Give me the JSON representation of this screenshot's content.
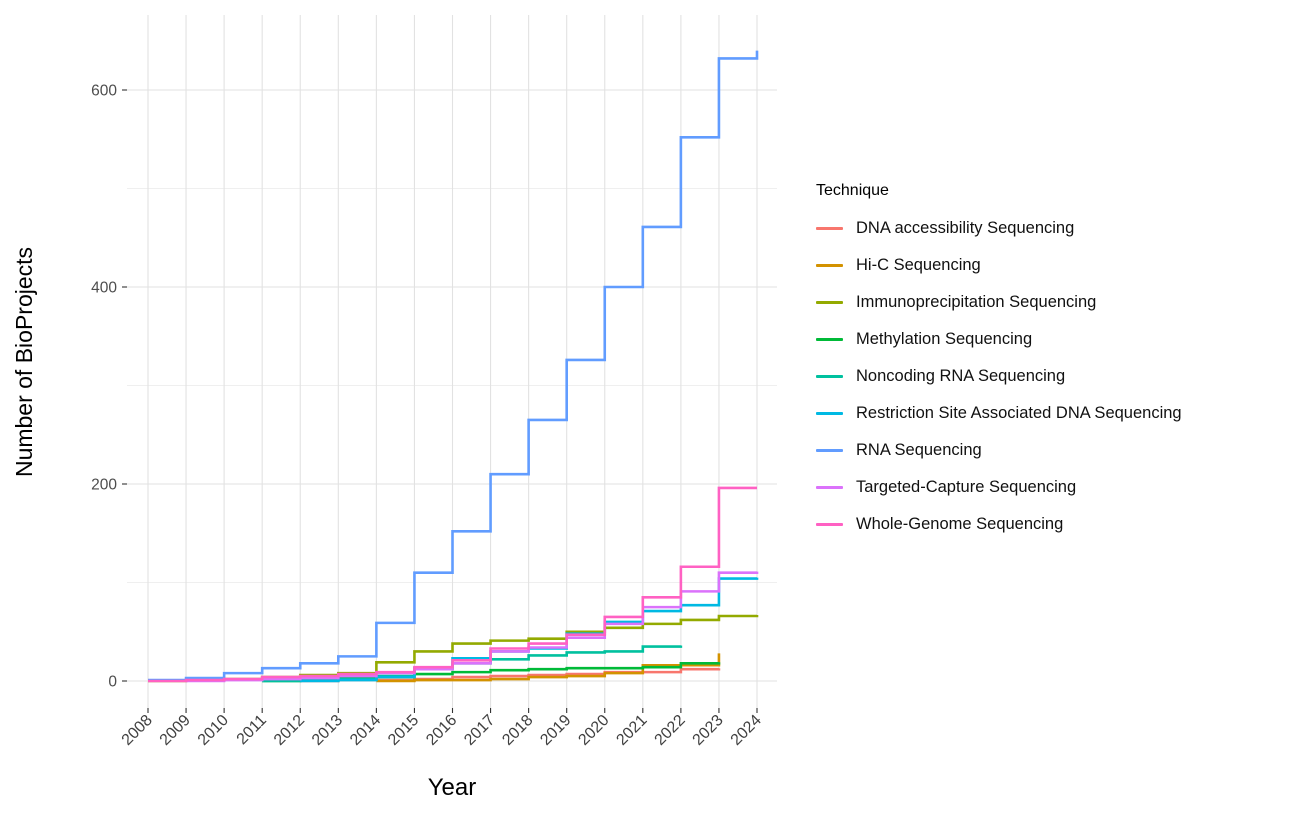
{
  "legend": {
    "title": "Technique",
    "items": [
      {
        "label": "DNA accessibility Sequencing",
        "color": "#F8766D"
      },
      {
        "label": "Hi-C Sequencing",
        "color": "#D39200"
      },
      {
        "label": "Immunoprecipitation Sequencing",
        "color": "#93AA00"
      },
      {
        "label": "Methylation Sequencing",
        "color": "#00BA38"
      },
      {
        "label": "Noncoding RNA Sequencing",
        "color": "#00C19F"
      },
      {
        "label": "Restriction Site Associated DNA Sequencing",
        "color": "#00B9E3"
      },
      {
        "label": "RNA Sequencing",
        "color": "#619CFF"
      },
      {
        "label": "Targeted-Capture Sequencing",
        "color": "#DB72FB"
      },
      {
        "label": "Whole-Genome Sequencing",
        "color": "#FF61C3"
      }
    ]
  },
  "chart_data": {
    "type": "line",
    "step": true,
    "title": "",
    "xlabel": "Year",
    "ylabel": "Number of BioProjects",
    "x_ticks": [
      2008,
      2009,
      2010,
      2011,
      2012,
      2013,
      2014,
      2015,
      2016,
      2017,
      2018,
      2019,
      2020,
      2021,
      2022,
      2023,
      2024
    ],
    "y_ticks": [
      0,
      200,
      400,
      600
    ],
    "y_minor_ticks": [
      100,
      300,
      500
    ],
    "xlim": [
      2008,
      2024
    ],
    "ylim": [
      0,
      660
    ],
    "grid": "on",
    "legend_position": "right",
    "series": [
      {
        "name": "DNA accessibility Sequencing",
        "color": "#F8766D",
        "points": [
          [
            2012,
            0
          ],
          [
            2013,
            1
          ],
          [
            2014,
            1
          ],
          [
            2015,
            2
          ],
          [
            2016,
            4
          ],
          [
            2017,
            5
          ],
          [
            2018,
            6
          ],
          [
            2019,
            7
          ],
          [
            2020,
            9
          ],
          [
            2021,
            9
          ],
          [
            2022,
            12
          ],
          [
            2023,
            13
          ]
        ]
      },
      {
        "name": "Hi-C Sequencing",
        "color": "#D39200",
        "points": [
          [
            2014,
            0
          ],
          [
            2015,
            1
          ],
          [
            2016,
            1
          ],
          [
            2017,
            2
          ],
          [
            2018,
            4
          ],
          [
            2019,
            5
          ],
          [
            2020,
            8
          ],
          [
            2021,
            16
          ],
          [
            2022,
            16
          ],
          [
            2023,
            28
          ]
        ]
      },
      {
        "name": "Immunoprecipitation Sequencing",
        "color": "#93AA00",
        "points": [
          [
            2008,
            0
          ],
          [
            2009,
            1
          ],
          [
            2010,
            2
          ],
          [
            2011,
            4
          ],
          [
            2012,
            6
          ],
          [
            2013,
            8
          ],
          [
            2014,
            19
          ],
          [
            2015,
            30
          ],
          [
            2016,
            38
          ],
          [
            2017,
            41
          ],
          [
            2018,
            43
          ],
          [
            2019,
            50
          ],
          [
            2020,
            54
          ],
          [
            2021,
            58
          ],
          [
            2022,
            62
          ],
          [
            2023,
            66
          ],
          [
            2024,
            67
          ]
        ]
      },
      {
        "name": "Methylation Sequencing",
        "color": "#00BA38",
        "points": [
          [
            2011,
            0
          ],
          [
            2012,
            2
          ],
          [
            2013,
            3
          ],
          [
            2014,
            4
          ],
          [
            2015,
            7
          ],
          [
            2016,
            9
          ],
          [
            2017,
            11
          ],
          [
            2018,
            12
          ],
          [
            2019,
            13
          ],
          [
            2020,
            13
          ],
          [
            2021,
            14
          ],
          [
            2022,
            18
          ],
          [
            2023,
            19
          ]
        ]
      },
      {
        "name": "Noncoding RNA Sequencing",
        "color": "#00C19F",
        "points": [
          [
            2011,
            0
          ],
          [
            2012,
            1
          ],
          [
            2013,
            2
          ],
          [
            2014,
            5
          ],
          [
            2015,
            12
          ],
          [
            2016,
            18
          ],
          [
            2017,
            22
          ],
          [
            2018,
            26
          ],
          [
            2019,
            29
          ],
          [
            2020,
            30
          ],
          [
            2021,
            35
          ],
          [
            2022,
            36
          ]
        ]
      },
      {
        "name": "Restriction Site Associated DNA Sequencing",
        "color": "#00B9E3",
        "points": [
          [
            2012,
            0
          ],
          [
            2013,
            1
          ],
          [
            2014,
            4
          ],
          [
            2015,
            13
          ],
          [
            2016,
            23
          ],
          [
            2017,
            30
          ],
          [
            2018,
            33
          ],
          [
            2019,
            48
          ],
          [
            2020,
            60
          ],
          [
            2021,
            71
          ],
          [
            2022,
            77
          ],
          [
            2023,
            104
          ],
          [
            2024,
            105
          ]
        ]
      },
      {
        "name": "RNA Sequencing",
        "color": "#619CFF",
        "points": [
          [
            2008,
            1
          ],
          [
            2009,
            3
          ],
          [
            2010,
            8
          ],
          [
            2011,
            13
          ],
          [
            2012,
            18
          ],
          [
            2013,
            25
          ],
          [
            2014,
            59
          ],
          [
            2015,
            110
          ],
          [
            2016,
            152
          ],
          [
            2017,
            210
          ],
          [
            2018,
            265
          ],
          [
            2019,
            326
          ],
          [
            2020,
            400
          ],
          [
            2021,
            461
          ],
          [
            2022,
            552
          ],
          [
            2023,
            632
          ],
          [
            2024,
            640
          ]
        ]
      },
      {
        "name": "Targeted-Capture Sequencing",
        "color": "#DB72FB",
        "points": [
          [
            2009,
            0
          ],
          [
            2010,
            1
          ],
          [
            2011,
            2
          ],
          [
            2012,
            3
          ],
          [
            2013,
            5
          ],
          [
            2014,
            8
          ],
          [
            2015,
            12
          ],
          [
            2016,
            18
          ],
          [
            2017,
            30
          ],
          [
            2018,
            34
          ],
          [
            2019,
            44
          ],
          [
            2020,
            58
          ],
          [
            2021,
            75
          ],
          [
            2022,
            91
          ],
          [
            2023,
            110
          ],
          [
            2024,
            111
          ]
        ]
      },
      {
        "name": "Whole-Genome Sequencing",
        "color": "#FF61C3",
        "points": [
          [
            2008,
            0
          ],
          [
            2009,
            1
          ],
          [
            2010,
            2
          ],
          [
            2011,
            4
          ],
          [
            2012,
            5
          ],
          [
            2013,
            7
          ],
          [
            2014,
            9
          ],
          [
            2015,
            14
          ],
          [
            2016,
            21
          ],
          [
            2017,
            33
          ],
          [
            2018,
            38
          ],
          [
            2019,
            47
          ],
          [
            2020,
            65
          ],
          [
            2021,
            85
          ],
          [
            2022,
            116
          ],
          [
            2023,
            196
          ],
          [
            2024,
            196
          ]
        ]
      }
    ]
  }
}
